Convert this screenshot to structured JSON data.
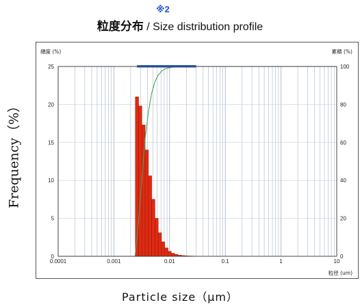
{
  "header": {
    "note_mark": "※2",
    "title_jp": "粒度分布",
    "title_en": " / Size distribution profile"
  },
  "axes": {
    "ylabel": "Frequency（%）",
    "xlabel": "Particle size（μm）",
    "left_axis_caption": "頻度 (%)",
    "right_axis_caption": "累積 (%)",
    "x_unit_caption": "粒径 (um)"
  },
  "chart_data": {
    "type": "bar",
    "xscale": "log",
    "xlim": [
      0.0001,
      10
    ],
    "ylim": [
      0,
      25
    ],
    "y2lim": [
      0,
      100
    ],
    "x_ticks": [
      "0.0001",
      "0.001",
      "0.01",
      "0.1",
      "1",
      "10"
    ],
    "y_ticks": [
      "0",
      "5",
      "10",
      "15",
      "20",
      "25"
    ],
    "y2_ticks": [
      "0",
      "20",
      "40",
      "60",
      "80",
      "100"
    ],
    "grid": true,
    "bars": [
      {
        "x0": 0.00243,
        "x1": 0.00278,
        "value": 21.0
      },
      {
        "x0": 0.00278,
        "x1": 0.00318,
        "value": 19.8
      },
      {
        "x0": 0.00318,
        "x1": 0.00364,
        "value": 17.3
      },
      {
        "x0": 0.00364,
        "x1": 0.00417,
        "value": 14.0
      },
      {
        "x0": 0.00417,
        "x1": 0.00477,
        "value": 10.6
      },
      {
        "x0": 0.00477,
        "x1": 0.00546,
        "value": 7.5
      },
      {
        "x0": 0.00546,
        "x1": 0.00625,
        "value": 5.0
      },
      {
        "x0": 0.00625,
        "x1": 0.00716,
        "value": 3.1
      },
      {
        "x0": 0.00716,
        "x1": 0.0082,
        "value": 1.9
      },
      {
        "x0": 0.0082,
        "x1": 0.00938,
        "value": 1.1
      },
      {
        "x0": 0.00938,
        "x1": 0.01074,
        "value": 0.65
      },
      {
        "x0": 0.01074,
        "x1": 0.0123,
        "value": 0.4
      },
      {
        "x0": 0.0123,
        "x1": 0.01408,
        "value": 0.25
      },
      {
        "x0": 0.01408,
        "x1": 0.01612,
        "value": 0.15
      },
      {
        "x0": 0.01612,
        "x1": 0.01845,
        "value": 0.1
      },
      {
        "x0": 0.01845,
        "x1": 0.02113,
        "value": 0.06
      },
      {
        "x0": 0.02113,
        "x1": 0.02419,
        "value": 0.04
      },
      {
        "x0": 0.02419,
        "x1": 0.0277,
        "value": 0.03
      }
    ],
    "cumulative": {
      "axis": "right",
      "x": [
        0.0001,
        0.0024,
        0.00278,
        0.00318,
        0.00364,
        0.00417,
        0.00477,
        0.00546,
        0.00625,
        0.00716,
        0.0082,
        0.01,
        0.013,
        0.02,
        0.03,
        10
      ],
      "y": [
        0,
        0,
        19,
        41,
        62,
        76,
        86,
        92,
        95.5,
        97.5,
        98.7,
        99.4,
        99.8,
        99.95,
        100,
        100
      ]
    },
    "range_band": {
      "x0": 0.0026,
      "x1": 0.03
    },
    "colors": {
      "bar": "#e02a12",
      "bar_edge": "#8a1a08",
      "curve": "#4aa35a",
      "band": "#2e5fbf",
      "grid": "#a9b6cc"
    }
  }
}
